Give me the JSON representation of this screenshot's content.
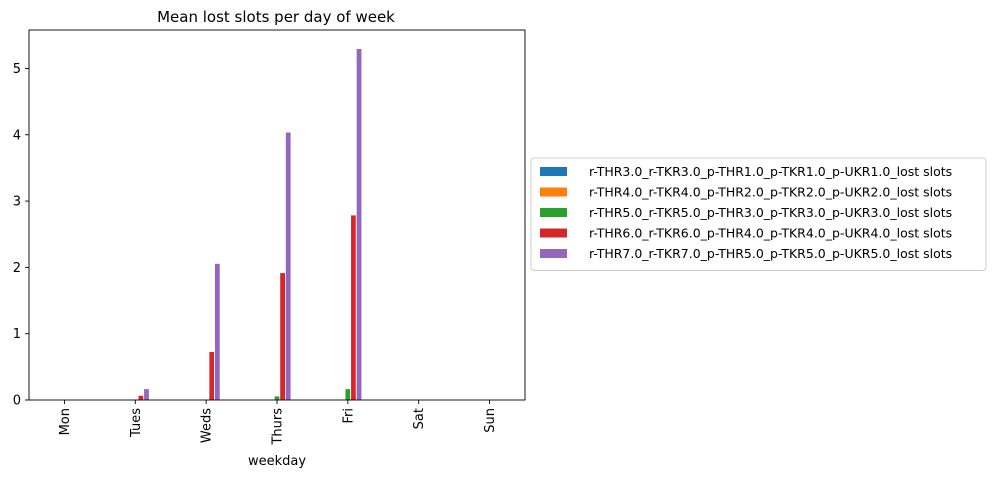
{
  "chart_data": {
    "type": "bar",
    "title": "Mean lost slots per day of week",
    "xlabel": "weekday",
    "ylabel": "",
    "categories": [
      "Mon",
      "Tues",
      "Weds",
      "Thurs",
      "Fri",
      "Sat",
      "Sun"
    ],
    "yticks": [
      "0",
      "1",
      "2",
      "3",
      "4",
      "5"
    ],
    "ylim": [
      0,
      5.58
    ],
    "grid": false,
    "legend_position": "right",
    "series": [
      {
        "name": "r-THR3.0_r-TKR3.0_p-THR1.0_p-TKR1.0_p-UKR1.0_lost slots",
        "color": "#1f77b4",
        "values": [
          0,
          0,
          0,
          0,
          0,
          0,
          0
        ]
      },
      {
        "name": "r-THR4.0_r-TKR4.0_p-THR2.0_p-TKR2.0_p-UKR2.0_lost slots",
        "color": "#ff7f0e",
        "values": [
          0,
          0,
          0,
          0,
          0,
          0,
          0
        ]
      },
      {
        "name": "r-THR5.0_r-TKR5.0_p-THR3.0_p-TKR3.0_p-UKR3.0_lost slots",
        "color": "#2ca02c",
        "values": [
          0,
          0,
          0,
          0.06,
          0.17,
          0,
          0
        ]
      },
      {
        "name": "r-THR6.0_r-TKR6.0_p-THR4.0_p-TKR4.0_p-UKR4.0_lost slots",
        "color": "#d62728",
        "values": [
          0,
          0.07,
          0.73,
          1.92,
          2.79,
          0,
          0
        ]
      },
      {
        "name": "r-THR7.0_r-TKR7.0_p-THR5.0_p-TKR5.0_p-UKR5.0_lost slots",
        "color": "#9467bd",
        "values": [
          0,
          0.17,
          2.06,
          4.04,
          5.3,
          0,
          0
        ]
      }
    ]
  }
}
